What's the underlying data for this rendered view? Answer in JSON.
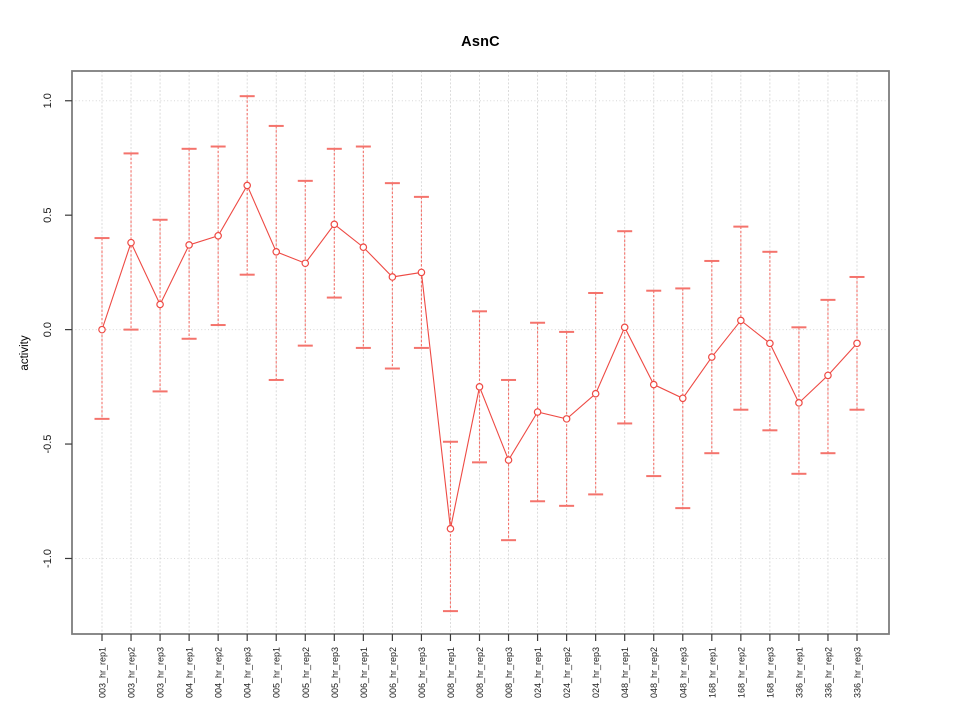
{
  "chart_data": {
    "type": "line",
    "title": "AsnC",
    "xlabel": "",
    "ylabel": "activity",
    "legend": "none",
    "categories": [
      "003_hr_rep1",
      "003_hr_rep2",
      "003_hr_rep3",
      "004_hr_rep1",
      "004_hr_rep2",
      "004_hr_rep3",
      "005_hr_rep1",
      "005_hr_rep2",
      "005_hr_rep3",
      "006_hr_rep1",
      "006_hr_rep2",
      "006_hr_rep3",
      "008_hr_rep1",
      "008_hr_rep2",
      "008_hr_rep3",
      "024_hr_rep1",
      "024_hr_rep2",
      "024_hr_rep3",
      "048_hr_rep1",
      "048_hr_rep2",
      "048_hr_rep3",
      "168_hr_rep1",
      "168_hr_rep2",
      "168_hr_rep3",
      "336_hr_rep1",
      "336_hr_rep2",
      "336_hr_rep3"
    ],
    "series": [
      {
        "name": "AsnC",
        "values": [
          0.0,
          0.38,
          0.11,
          0.37,
          0.41,
          0.63,
          0.34,
          0.29,
          0.46,
          0.36,
          0.23,
          0.25,
          -0.87,
          -0.25,
          -0.57,
          -0.36,
          -0.39,
          -0.28,
          0.01,
          -0.24,
          -0.3,
          -0.12,
          0.04,
          -0.06,
          -0.32,
          -0.2,
          -0.06
        ],
        "lower": [
          -0.39,
          0.0,
          -0.27,
          -0.04,
          0.02,
          0.24,
          -0.22,
          -0.07,
          0.14,
          -0.08,
          -0.17,
          -0.08,
          -1.23,
          -0.58,
          -0.92,
          -0.75,
          -0.77,
          -0.72,
          -0.41,
          -0.64,
          -0.78,
          -0.54,
          -0.35,
          -0.44,
          -0.63,
          -0.54,
          -0.35
        ],
        "upper": [
          0.4,
          0.77,
          0.48,
          0.79,
          0.8,
          1.02,
          0.89,
          0.65,
          0.79,
          0.8,
          0.64,
          0.58,
          -0.49,
          0.08,
          -0.22,
          0.03,
          -0.01,
          0.16,
          0.43,
          0.17,
          0.18,
          0.3,
          0.45,
          0.34,
          0.01,
          0.13,
          0.23
        ]
      }
    ],
    "ylim": [
      -1.33,
      1.13
    ],
    "yticks": [
      -1.0,
      -0.5,
      0.0,
      0.5,
      1.0
    ],
    "ytick_labels": [
      "-1.0",
      "-0.5",
      "0.0",
      "0.5",
      "1.0"
    ],
    "grid": {
      "horizontal_at": [
        -1.0,
        0.0,
        1.0
      ],
      "vertical": "every-category",
      "style": "dotted"
    },
    "marker": "open-circle",
    "colors": {
      "line": "#ee4a44",
      "error_bar": "#f4736c",
      "marker_fill": "#ffffff",
      "grid": "#d8d8d8",
      "frame": "#7d7d7d",
      "tick": "#3a3a3a",
      "text": "#1a1a1a"
    }
  }
}
